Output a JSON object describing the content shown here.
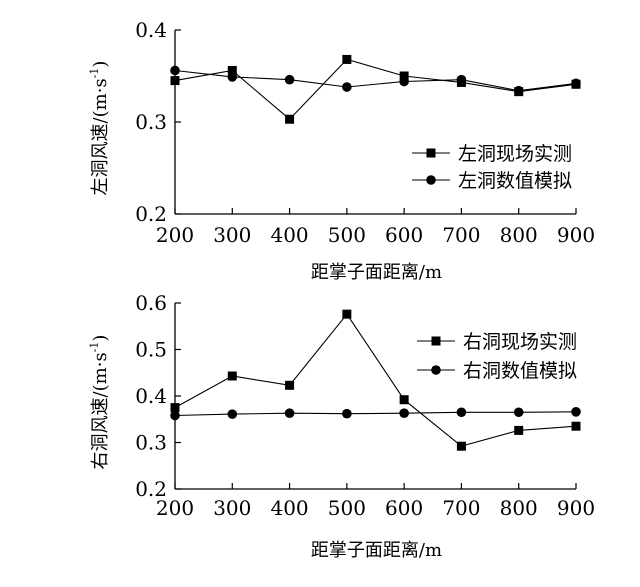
{
  "chart_data": [
    {
      "type": "line",
      "x": [
        200,
        300,
        400,
        500,
        600,
        700,
        800,
        900
      ],
      "xlabel": "距掌子面距离/m",
      "ylabel": "左洞风速/(m·s",
      "ylabel_sup": "-1",
      "ylabel_close": ")",
      "xlim": [
        200,
        900
      ],
      "ylim": [
        0.2,
        0.4
      ],
      "yticks": [
        0.2,
        0.3,
        0.4
      ],
      "ytick_labels": [
        "0.2",
        "0.3",
        "0.4"
      ],
      "xtick_labels": [
        "200",
        "300",
        "400",
        "500",
        "600",
        "700",
        "800",
        "900"
      ],
      "grid": false,
      "legend_position": "lower-right",
      "series": [
        {
          "name": "左洞现场实测",
          "marker": "square",
          "values": [
            0.345,
            0.356,
            0.303,
            0.368,
            0.35,
            0.343,
            0.333,
            0.341
          ]
        },
        {
          "name": "左洞数值模拟",
          "marker": "circle",
          "values": [
            0.356,
            0.349,
            0.346,
            0.338,
            0.344,
            0.346,
            0.334,
            0.342
          ]
        }
      ]
    },
    {
      "type": "line",
      "x": [
        200,
        300,
        400,
        500,
        600,
        700,
        800,
        900
      ],
      "xlabel": "距掌子面距离/m",
      "ylabel": "右洞风速/(m·s",
      "ylabel_sup": "-1",
      "ylabel_close": ")",
      "xlim": [
        200,
        900
      ],
      "ylim": [
        0.2,
        0.6
      ],
      "yticks": [
        0.2,
        0.3,
        0.4,
        0.5,
        0.6
      ],
      "ytick_labels": [
        "0.2",
        "0.3",
        "0.4",
        "0.5",
        "0.6"
      ],
      "xtick_labels": [
        "200",
        "300",
        "400",
        "500",
        "600",
        "700",
        "800",
        "900"
      ],
      "grid": false,
      "legend_position": "upper-right",
      "series": [
        {
          "name": "右洞现场实测",
          "marker": "square",
          "values": [
            0.375,
            0.443,
            0.423,
            0.576,
            0.392,
            0.292,
            0.326,
            0.335
          ]
        },
        {
          "name": "右洞数值模拟",
          "marker": "circle",
          "values": [
            0.358,
            0.361,
            0.363,
            0.362,
            0.363,
            0.365,
            0.365,
            0.366
          ]
        }
      ]
    }
  ]
}
